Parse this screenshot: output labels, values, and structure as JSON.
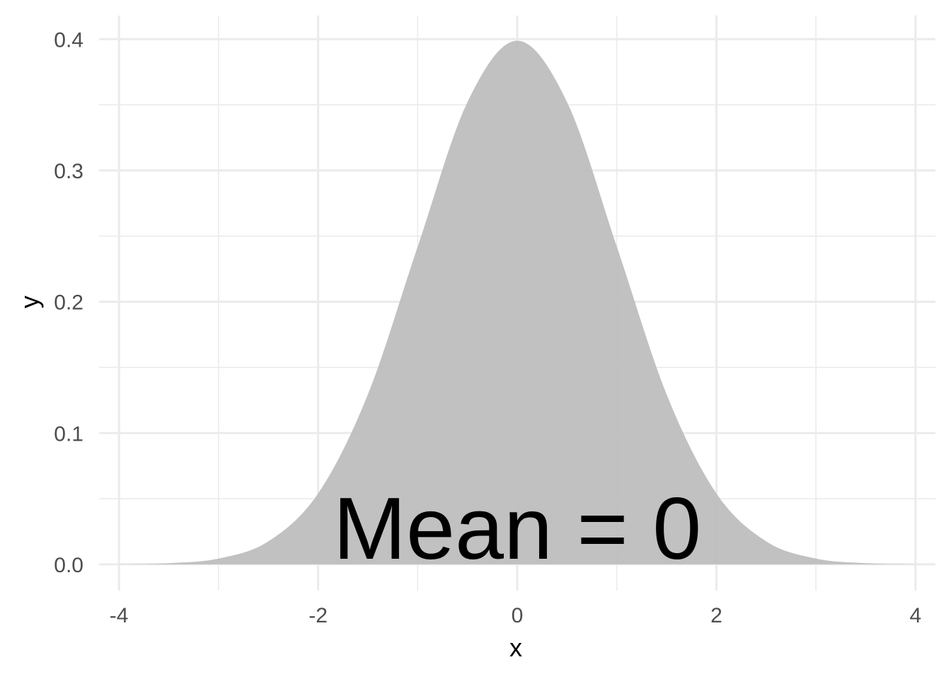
{
  "chart_data": {
    "type": "area",
    "title": "",
    "xlabel": "x",
    "ylabel": "y",
    "xlim": [
      -4.2,
      4.2
    ],
    "ylim": [
      -0.02,
      0.418
    ],
    "x_ticks": [
      -4,
      -2,
      0,
      2,
      4
    ],
    "x_tick_labels": [
      "-4",
      "-2",
      "0",
      "2",
      "4"
    ],
    "y_ticks": [
      0.0,
      0.1,
      0.2,
      0.3,
      0.4
    ],
    "y_tick_labels": [
      "0.0",
      "0.1",
      "0.2",
      "0.3",
      "0.4"
    ],
    "grid": true,
    "legend": "none",
    "fill_color": "#bebebe",
    "series": [
      {
        "x": [
          -4,
          -3.5,
          -3,
          -2.5,
          -2,
          -1.5,
          -1,
          -0.5,
          0,
          0.5,
          1,
          1.5,
          2,
          2.5,
          3,
          3.5,
          4
        ],
        "y": [
          0.0001,
          0.0009,
          0.0044,
          0.0175,
          0.054,
          0.1295,
          0.242,
          0.3521,
          0.3989,
          0.3521,
          0.242,
          0.1295,
          0.054,
          0.0175,
          0.0044,
          0.0009,
          0.0001
        ]
      }
    ],
    "annotations": [
      {
        "text": "Mean = 0",
        "x": 0,
        "y": 0.0
      }
    ]
  }
}
